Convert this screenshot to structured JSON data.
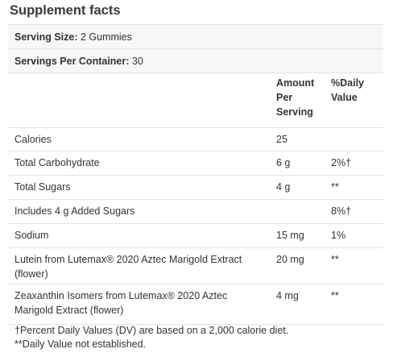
{
  "title": "Supplement facts",
  "serving_size": {
    "label": "Serving Size:",
    "value": "2 Gummies"
  },
  "servings_per_container": {
    "label": "Servings Per Container:",
    "value": "30"
  },
  "headers": {
    "amount": "Amount Per Serving",
    "dv": "%Daily Value"
  },
  "rows": [
    {
      "name": "Calories",
      "amount": "25",
      "dv": ""
    },
    {
      "name": "Total Carbohydrate",
      "amount": "6 g",
      "dv": "2%†"
    },
    {
      "name": "Total Sugars",
      "amount": "4 g",
      "dv": "**"
    },
    {
      "name": "Includes 4 g Added Sugars",
      "amount": "",
      "dv": "8%†"
    },
    {
      "name": "Sodium",
      "amount": "15 mg",
      "dv": "1%"
    },
    {
      "name": "Lutein from Lutemax® 2020 Aztec Marigold Extract (flower)",
      "amount": "20 mg",
      "dv": "**"
    },
    {
      "name": "Zeaxanthin Isomers from Lutemax® 2020 Aztec Marigold Extract (flower)",
      "amount": "4 mg",
      "dv": "**"
    }
  ],
  "footnotes": [
    "†Percent Daily Values (DV) are based on a 2,000 calorie diet.",
    "**Daily Value not established."
  ]
}
